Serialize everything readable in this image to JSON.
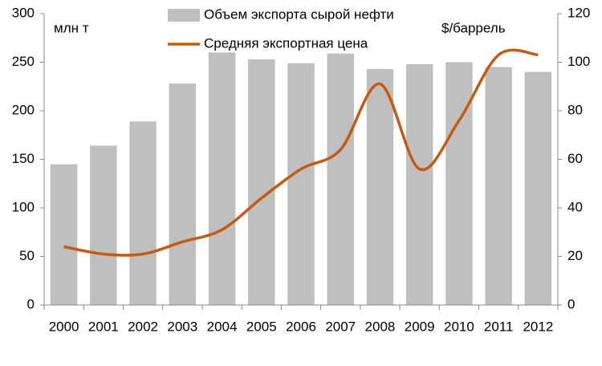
{
  "chart_data": {
    "type": "bar",
    "y_label": "млн т",
    "y2_label": "$/баррель",
    "categories": [
      "2000",
      "2001",
      "2002",
      "2003",
      "2004",
      "2005",
      "2006",
      "2007",
      "2008",
      "2009",
      "2010",
      "2011",
      "2012"
    ],
    "series": [
      {
        "name": "Объем экспорта сырой нефти",
        "color": "#bfbfbf",
        "type": "bar",
        "values": [
          145,
          164,
          189,
          228,
          260,
          253,
          249,
          259,
          243,
          248,
          250,
          245,
          240
        ]
      },
      {
        "name": "Средняя экспортная цена",
        "color": "#c55a11",
        "type": "line",
        "axis": "y2",
        "values": [
          24,
          21,
          21,
          26,
          31,
          44,
          56,
          64,
          91,
          56,
          76,
          103,
          103
        ]
      }
    ],
    "ylim": [
      0,
      300
    ],
    "yticks": [
      0,
      50,
      100,
      150,
      200,
      250,
      300
    ],
    "y2lim": [
      0,
      120
    ],
    "y2ticks": [
      0,
      20,
      40,
      60,
      80,
      100,
      120
    ],
    "grid": false,
    "legend": "top"
  }
}
